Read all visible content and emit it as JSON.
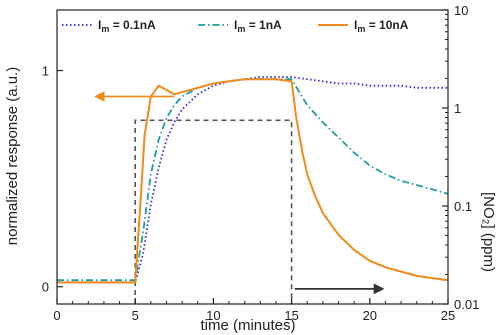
{
  "chart_data": {
    "type": "line",
    "title": "",
    "xlabel": "time (minutes)",
    "ylabel": "normalized response (a.u.)",
    "y2label": "[NO₂] (ppm)",
    "xlim": [
      0,
      25
    ],
    "ylim": [
      -0.08,
      1.28
    ],
    "y2lim": [
      0.01,
      10
    ],
    "y2scale": "log",
    "grid": false,
    "legend_position": "top",
    "x_ticks": [
      {
        "value": 0,
        "label": "0"
      },
      {
        "value": 5,
        "label": "5"
      },
      {
        "value": 10,
        "label": "10"
      },
      {
        "value": 15,
        "label": "15"
      },
      {
        "value": 20,
        "label": "20"
      },
      {
        "value": 25,
        "label": "25"
      }
    ],
    "y_ticks": [
      {
        "value": 0,
        "label": "0"
      },
      {
        "value": 1,
        "label": "1"
      }
    ],
    "y2_ticks": [
      {
        "value": 0.01,
        "label": "0.01"
      },
      {
        "value": 0.1,
        "label": "0.1"
      },
      {
        "value": 1,
        "label": "1"
      },
      {
        "value": 10,
        "label": "10"
      }
    ],
    "series": [
      {
        "name": "I_m = 0.1nA",
        "legend_main": "I",
        "legend_sub": "m",
        "legend_rest": " = 0.1nA",
        "color": "#2b2bd0",
        "style": "dotted",
        "x": [
          0,
          5.0,
          5.5,
          6.0,
          6.5,
          7.0,
          7.5,
          8.0,
          9.0,
          10.0,
          11.0,
          12.0,
          13.0,
          14.0,
          15.0,
          16.0,
          17.0,
          18.0,
          19.0,
          20.0,
          21.0,
          22.0,
          23.0,
          24.0,
          25.0
        ],
        "y": [
          0.02,
          0.02,
          0.15,
          0.38,
          0.55,
          0.68,
          0.76,
          0.82,
          0.89,
          0.93,
          0.95,
          0.96,
          0.97,
          0.97,
          0.97,
          0.96,
          0.95,
          0.94,
          0.94,
          0.93,
          0.93,
          0.93,
          0.92,
          0.92,
          0.92
        ]
      },
      {
        "name": "I_m = 1nA",
        "legend_main": "I",
        "legend_sub": "m",
        "legend_rest": " = 1nA",
        "color": "#1f9e9e",
        "style": "dashdot",
        "x": [
          0,
          5.0,
          5.5,
          6.0,
          6.5,
          7.0,
          7.5,
          8.0,
          9.0,
          10.0,
          11.0,
          12.0,
          13.0,
          14.0,
          15.0,
          15.5,
          16.0,
          17.0,
          18.0,
          19.0,
          20.0,
          21.0,
          22.0,
          23.0,
          24.0,
          25.0
        ],
        "y": [
          0.03,
          0.03,
          0.25,
          0.52,
          0.68,
          0.78,
          0.84,
          0.88,
          0.92,
          0.94,
          0.95,
          0.96,
          0.96,
          0.96,
          0.96,
          0.9,
          0.84,
          0.76,
          0.69,
          0.62,
          0.56,
          0.52,
          0.49,
          0.47,
          0.45,
          0.43
        ]
      },
      {
        "name": "I_m = 10nA",
        "legend_main": "I",
        "legend_sub": "m",
        "legend_rest": " = 10nA",
        "color": "#f08a1c",
        "style": "solid",
        "x": [
          0,
          5.0,
          5.3,
          5.6,
          6.0,
          6.5,
          7.0,
          7.5,
          8.0,
          9.0,
          10.0,
          11.0,
          12.0,
          13.0,
          14.0,
          15.0,
          15.3,
          15.7,
          16.0,
          16.5,
          17.0,
          18.0,
          19.0,
          20.0,
          21.0,
          22.0,
          23.0,
          24.0,
          25.0
        ],
        "y": [
          0.02,
          0.02,
          0.35,
          0.7,
          0.88,
          0.93,
          0.91,
          0.89,
          0.9,
          0.92,
          0.94,
          0.95,
          0.96,
          0.96,
          0.96,
          0.95,
          0.78,
          0.62,
          0.52,
          0.42,
          0.34,
          0.24,
          0.17,
          0.12,
          0.09,
          0.07,
          0.05,
          0.04,
          0.03
        ]
      }
    ],
    "concentration_profile": {
      "style": "dashed",
      "color": "#555555",
      "x": [
        5,
        5,
        15,
        15
      ],
      "y": [
        -0.08,
        0.77,
        0.77,
        -0.08
      ]
    },
    "annotations": [
      {
        "type": "arrow",
        "color": "#f08a1c",
        "from": [
          7.5,
          0.88
        ],
        "to": [
          2.5,
          0.88
        ],
        "meaning": "curve read on left axis"
      },
      {
        "type": "arrow",
        "color": "#333333",
        "from": [
          15.2,
          -0.01
        ],
        "to": [
          20.8,
          -0.01
        ],
        "meaning": "dashed profile read on right axis"
      }
    ]
  }
}
